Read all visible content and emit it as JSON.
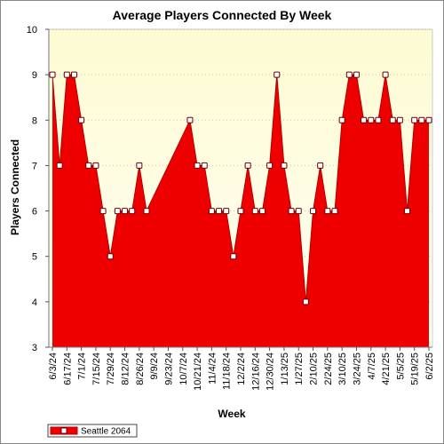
{
  "chart_data": {
    "type": "area",
    "title": "Average Players Connected By Week",
    "xlabel": "Week",
    "ylabel": "Players Connected",
    "ylim": [
      3,
      10
    ],
    "yticks": [
      3,
      4,
      5,
      6,
      7,
      8,
      9,
      10
    ],
    "x_tick_labels": [
      "6/3/24",
      "6/17/24",
      "7/1/24",
      "7/15/24",
      "7/29/24",
      "8/12/24",
      "8/26/24",
      "9/9/24",
      "9/23/24",
      "10/7/24",
      "10/21/24",
      "11/4/24",
      "11/18/24",
      "12/2/24",
      "12/16/24",
      "12/30/24",
      "1/13/25",
      "1/27/25",
      "2/10/25",
      "2/24/25",
      "3/10/25",
      "3/24/25",
      "4/7/25",
      "4/21/25",
      "5/5/25",
      "5/19/25",
      "6/2/25"
    ],
    "grid": true,
    "legend_position": "bottom-left",
    "series": [
      {
        "name": "Seattle 2064",
        "color": "#ee0000",
        "x": [
          "6/3/24",
          "6/10/24",
          "6/17/24",
          "6/24/24",
          "7/1/24",
          "7/8/24",
          "7/15/24",
          "7/22/24",
          "7/29/24",
          "8/5/24",
          "8/12/24",
          "8/19/24",
          "8/26/24",
          "9/2/24",
          "10/14/24",
          "10/21/24",
          "10/28/24",
          "11/4/24",
          "11/11/24",
          "11/18/24",
          "11/25/24",
          "12/2/24",
          "12/9/24",
          "12/16/24",
          "12/23/24",
          "12/30/24",
          "1/6/25",
          "1/13/25",
          "1/20/25",
          "1/27/25",
          "2/3/25",
          "2/10/25",
          "2/17/25",
          "2/24/25",
          "3/3/25",
          "3/10/25",
          "3/17/25",
          "3/24/25",
          "3/31/25",
          "4/7/25",
          "4/14/25",
          "4/21/25",
          "4/28/25",
          "5/5/25",
          "5/12/25",
          "5/19/25",
          "5/26/25",
          "6/2/25"
        ],
        "values": [
          9,
          7,
          9,
          9,
          8,
          7,
          7,
          6,
          5,
          6,
          6,
          6,
          7,
          6,
          8,
          7,
          7,
          6,
          6,
          6,
          5,
          6,
          7,
          6,
          6,
          7,
          9,
          7,
          6,
          6,
          4,
          6,
          7,
          6,
          6,
          8,
          9,
          9,
          8,
          8,
          8,
          9,
          8,
          8,
          6,
          8,
          8,
          8
        ]
      }
    ]
  },
  "colors": {
    "plot_background_top": "#fdfbd2",
    "plot_background_bottom": "#fffff4",
    "area_fill": "#ee0000",
    "area_stroke": "#b00000"
  }
}
